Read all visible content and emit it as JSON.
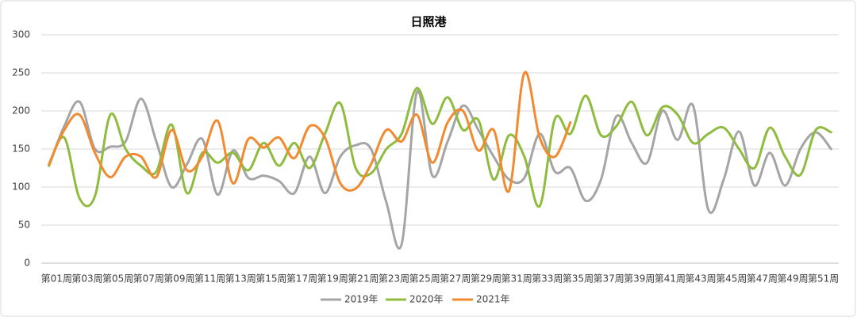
{
  "chart_data": {
    "type": "line",
    "title": "日照港",
    "categories": [
      "第01周",
      null,
      "第03周",
      null,
      "第05周",
      null,
      "第07周",
      null,
      "第09周",
      null,
      "第11周",
      null,
      "第13周",
      null,
      "第15周",
      null,
      "第17周",
      null,
      "第19周",
      null,
      "第21周",
      null,
      "第23周",
      null,
      "第25周",
      null,
      "第27周",
      null,
      "第29周",
      null,
      "第31周",
      null,
      "第33周",
      null,
      "第35周",
      null,
      "第37周",
      null,
      "第39周",
      null,
      "第41周",
      null,
      "第43周",
      null,
      "第45周",
      null,
      "第47周",
      null,
      "第49周",
      null,
      "第51周",
      null
    ],
    "series": [
      {
        "name": "2019年",
        "color": "#a5a5a5",
        "values": [
          128,
          180,
          212,
          150,
          153,
          160,
          216,
          160,
          100,
          130,
          163,
          90,
          148,
          112,
          115,
          108,
          92,
          140,
          92,
          140,
          155,
          150,
          80,
          25,
          225,
          115,
          160,
          207,
          175,
          140,
          110,
          112,
          170,
          120,
          125,
          82,
          110,
          193,
          158,
          132,
          200,
          162,
          207,
          70,
          110,
          173,
          102,
          145,
          102,
          150,
          172,
          150
        ]
      },
      {
        "name": "2020年",
        "color": "#8fbc3f",
        "values": [
          128,
          165,
          85,
          88,
          195,
          150,
          128,
          120,
          182,
          92,
          145,
          132,
          145,
          122,
          158,
          128,
          158,
          125,
          170,
          210,
          125,
          118,
          150,
          170,
          230,
          183,
          218,
          175,
          188,
          110,
          168,
          140,
          75,
          190,
          170,
          220,
          168,
          180,
          212,
          168,
          205,
          195,
          158,
          170,
          178,
          150,
          125,
          178,
          140,
          116,
          175,
          172
        ]
      },
      {
        "name": "2021年",
        "color": "#f28a30",
        "values": [
          130,
          175,
          195,
          145,
          113,
          140,
          140,
          113,
          175,
          122,
          140,
          187,
          105,
          163,
          152,
          165,
          138,
          180,
          165,
          105,
          98,
          130,
          175,
          160,
          195,
          132,
          185,
          200,
          148,
          175,
          95,
          250,
          165,
          140,
          185,
          null,
          null,
          null,
          null,
          null,
          null,
          null,
          null,
          null,
          null,
          null,
          null,
          null,
          null,
          null,
          null,
          null
        ]
      }
    ],
    "ylim": [
      0,
      300
    ],
    "yticks": [
      0,
      50,
      100,
      150,
      200,
      250,
      300
    ],
    "grid": true
  }
}
